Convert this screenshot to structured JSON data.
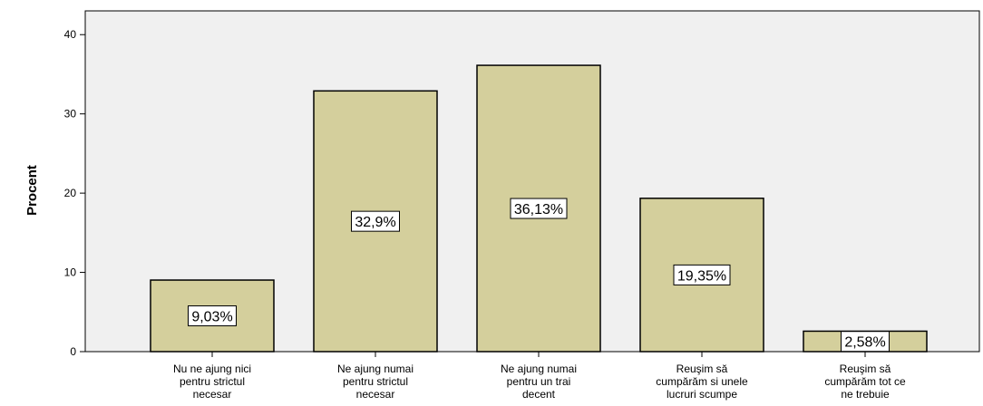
{
  "chart_data": {
    "type": "bar",
    "ylabel": "Procent",
    "xlabel": "",
    "ylim": [
      0,
      43
    ],
    "yticks": [
      0,
      10,
      20,
      30,
      40
    ],
    "grid": false,
    "categories": [
      [
        "Nu ne ajung nici",
        "pentru strictul",
        "necesar"
      ],
      [
        "Ne ajung numai",
        "pentru strictul",
        "necesar"
      ],
      [
        "Ne ajung numai",
        "pentru un trai",
        "decent"
      ],
      [
        "Reuşim să",
        "cumpărăm si unele",
        "lucruri scumpe"
      ],
      [
        "Reuşim să",
        "cumpărăm tot ce",
        "ne trebuie"
      ]
    ],
    "values": [
      9.03,
      32.9,
      36.13,
      19.35,
      2.58
    ],
    "data_labels": [
      "9,03%",
      "32,9%",
      "36,13%",
      "19,35%",
      "2,58%"
    ]
  },
  "colors": {
    "plot_background": "#f0f0f0",
    "bar_fill": "#d4cf9c",
    "bar_stroke": "#000000",
    "label_box": "#ffffff"
  }
}
